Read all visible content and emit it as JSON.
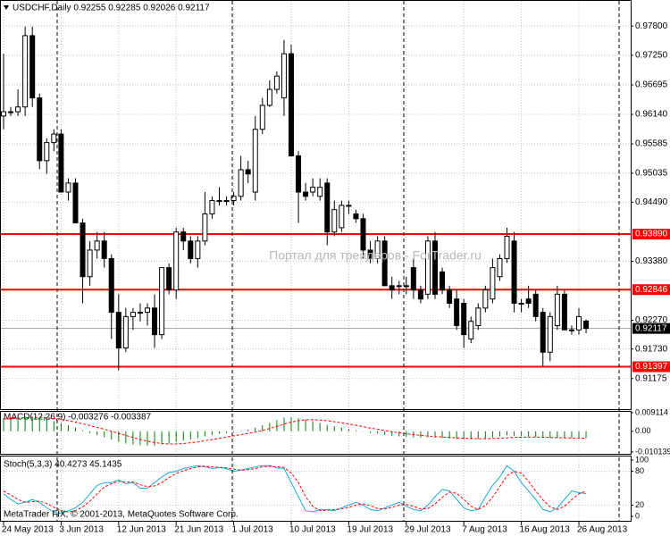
{
  "chart_data": [
    {
      "type": "candlestick",
      "title": "USDCHF,Daily  0.92255 0.92285 0.92026 0.92117",
      "annotations": [
        "Портал для трейдеров - ForTrader.ru",
        "MetaTrader FIX, © 2001-2013, MetaQuotes Software Corp."
      ],
      "categories": [
        "24 May 2013",
        null,
        null,
        null,
        null,
        null,
        null,
        null,
        "3 Jun 2013",
        null,
        null,
        null,
        null,
        null,
        null,
        null,
        "12 Jun 2013",
        null,
        null,
        null,
        null,
        null,
        null,
        null,
        "21 Jun 2013",
        null,
        null,
        null,
        null,
        null,
        null,
        null,
        "1 Jul 2013",
        null,
        null,
        null,
        null,
        null,
        null,
        null,
        "10 Jul 2013",
        null,
        null,
        null,
        null,
        null,
        null,
        null,
        "19 Jul 2013",
        null,
        null,
        null,
        null,
        null,
        null,
        null,
        "29 Jul 2013",
        null,
        null,
        null,
        null,
        null,
        null,
        null,
        "7 Aug 2013",
        null,
        null,
        null,
        null,
        null,
        null,
        null,
        "16 Aug 2013",
        null,
        null,
        null,
        null,
        null,
        null,
        null,
        "26 Aug 2013",
        null
      ],
      "open": [
        0.9611,
        0.9619,
        0.9619,
        0.9628,
        0.9762,
        0.9645,
        0.9527,
        0.9561,
        0.9577,
        0.9468,
        0.9485,
        0.941,
        0.9309,
        0.9359,
        0.9376,
        0.9343,
        0.9242,
        0.9175,
        0.9234,
        0.9242,
        0.9242,
        0.925,
        0.92,
        0.9326,
        0.9284,
        0.9393,
        0.9376,
        0.9343,
        0.9376,
        0.9427,
        0.9452,
        0.9452,
        0.9452,
        0.946,
        0.951,
        0.9468,
        0.9586,
        0.9631,
        0.9661,
        0.9645,
        0.9728,
        0.9536,
        0.9468,
        0.9468,
        0.946,
        0.9485,
        0.9393,
        0.9401,
        0.9443,
        0.9427,
        0.9418,
        0.9359,
        0.9343,
        0.9376,
        0.9292,
        0.9292,
        0.9292,
        0.9326,
        0.9284,
        0.9276,
        0.9376,
        0.9318,
        0.9284,
        0.9267,
        0.9259,
        0.9192,
        0.9217,
        0.925,
        0.9267,
        0.9309,
        0.9343,
        0.9376,
        0.9259,
        0.9267,
        0.9276,
        0.9242,
        0.9167,
        0.9217,
        0.9276,
        0.9209,
        0.9209,
        0.92255
      ],
      "high": [
        0.9728,
        0.9628,
        0.9661,
        0.9779,
        0.9779,
        0.9653,
        0.9569,
        0.9586,
        0.9586,
        0.9494,
        0.9494,
        0.9418,
        0.9376,
        0.9393,
        0.9393,
        0.9351,
        0.9276,
        0.925,
        0.925,
        0.9259,
        0.9259,
        0.9276,
        0.9326,
        0.9334,
        0.9401,
        0.9401,
        0.9385,
        0.9385,
        0.9468,
        0.946,
        0.9477,
        0.946,
        0.9468,
        0.9536,
        0.9527,
        0.9611,
        0.9645,
        0.9678,
        0.9695,
        0.9754,
        0.9745,
        0.9545,
        0.9485,
        0.9494,
        0.9494,
        0.9494,
        0.9452,
        0.9452,
        0.9452,
        0.9435,
        0.9427,
        0.9376,
        0.9385,
        0.9385,
        0.9309,
        0.9301,
        0.9309,
        0.9343,
        0.9292,
        0.9385,
        0.9393,
        0.9326,
        0.9292,
        0.9284,
        0.9267,
        0.9234,
        0.9259,
        0.9292,
        0.9343,
        0.9351,
        0.9401,
        0.9393,
        0.9267,
        0.9292,
        0.9284,
        0.925,
        0.9242,
        0.9292,
        0.9284,
        0.9217,
        0.925,
        0.92285
      ],
      "low": [
        0.9586,
        0.9611,
        0.9611,
        0.9611,
        0.9628,
        0.9511,
        0.9502,
        0.9545,
        0.9468,
        0.9452,
        0.941,
        0.9259,
        0.9292,
        0.9343,
        0.9326,
        0.9192,
        0.9133,
        0.9167,
        0.9209,
        0.9225,
        0.9217,
        0.9175,
        0.9192,
        0.9276,
        0.9267,
        0.9359,
        0.9334,
        0.9326,
        0.9368,
        0.9418,
        0.9443,
        0.9443,
        0.9443,
        0.9452,
        0.9485,
        0.9452,
        0.9577,
        0.9628,
        0.9653,
        0.9611,
        0.9536,
        0.941,
        0.9452,
        0.946,
        0.9452,
        0.9368,
        0.9385,
        0.9393,
        0.9427,
        0.941,
        0.9343,
        0.9334,
        0.9334,
        0.9292,
        0.9267,
        0.9276,
        0.9276,
        0.9267,
        0.9259,
        0.9267,
        0.9267,
        0.9276,
        0.925,
        0.9209,
        0.9175,
        0.9184,
        0.9209,
        0.9242,
        0.9259,
        0.9301,
        0.9335,
        0.9242,
        0.9242,
        0.925,
        0.9225,
        0.9141,
        0.915,
        0.9209,
        0.9209,
        0.92,
        0.92,
        0.92026
      ],
      "close": [
        0.9619,
        0.9619,
        0.9628,
        0.9762,
        0.9645,
        0.9527,
        0.9561,
        0.9577,
        0.9468,
        0.9485,
        0.941,
        0.9309,
        0.9359,
        0.9376,
        0.9343,
        0.9242,
        0.9175,
        0.9234,
        0.9242,
        0.9242,
        0.925,
        0.92,
        0.9326,
        0.9284,
        0.9393,
        0.9376,
        0.9343,
        0.9376,
        0.9427,
        0.9452,
        0.9452,
        0.9452,
        0.946,
        0.951,
        0.9502,
        0.9586,
        0.9631,
        0.9661,
        0.9686,
        0.9728,
        0.9536,
        0.9468,
        0.946,
        0.9477,
        0.9477,
        0.9393,
        0.9435,
        0.9443,
        0.9443,
        0.9418,
        0.9359,
        0.9343,
        0.9376,
        0.9292,
        0.9284,
        0.9292,
        0.9292,
        0.9284,
        0.9267,
        0.9376,
        0.9276,
        0.9284,
        0.9259,
        0.9217,
        0.92,
        0.9225,
        0.925,
        0.9284,
        0.9326,
        0.9343,
        0.9385,
        0.9259,
        0.9259,
        0.9259,
        0.9234,
        0.9167,
        0.9234,
        0.9276,
        0.9209,
        0.9209,
        0.9234,
        0.92117
      ],
      "up_color": "#ffffff",
      "down_color": "#000000",
      "ylim": [
        0.906,
        0.9829
      ],
      "yticks": [
        {
          "value": 0.978,
          "label": "0.97800"
        },
        {
          "value": 0.9725,
          "label": "0.97250"
        },
        {
          "value": 0.96695,
          "label": "0.96695"
        },
        {
          "value": 0.9614,
          "label": "0.96140"
        },
        {
          "value": 0.95585,
          "label": "0.95585"
        },
        {
          "value": 0.95035,
          "label": "0.95035"
        },
        {
          "value": 0.9449,
          "label": "0.94490"
        },
        {
          "value": 0.9338,
          "label": "0.93380"
        },
        {
          "value": 0.9227,
          "label": "0.92270"
        },
        {
          "value": 0.9173,
          "label": "0.91730"
        },
        {
          "value": 0.91175,
          "label": "0.91175"
        }
      ],
      "hlines": [
        {
          "value": 0.9389,
          "label": "0.93890"
        },
        {
          "value": 0.92846,
          "label": "0.92846"
        },
        {
          "value": 0.91397,
          "label": "0.91397"
        }
      ],
      "hline_color": "#ff0000",
      "last_price": {
        "value": 0.92117,
        "label": "0.92117"
      },
      "grid": true
    },
    {
      "type": "bar",
      "title": "MACD(12,26,9) -0.003276 -0.003387",
      "series": [
        {
          "style": "histogram",
          "color": "#008000",
          "values": [
            0.0065,
            0.0068,
            0.007,
            0.0072,
            0.007,
            0.0065,
            0.0058,
            0.005,
            0.004,
            0.003,
            0.0018,
            0.0005,
            -0.0008,
            -0.0018,
            -0.0028,
            -0.004,
            -0.0052,
            -0.006,
            -0.0065,
            -0.0068,
            -0.007,
            -0.007,
            -0.0065,
            -0.006,
            -0.0052,
            -0.0045,
            -0.004,
            -0.0034,
            -0.0025,
            -0.0018,
            -0.0012,
            -0.0008,
            -0.0004,
            0.0002,
            0.0008,
            0.0018,
            0.003,
            0.0042,
            0.0055,
            0.0068,
            0.007,
            0.0065,
            0.0058,
            0.005,
            0.0042,
            0.0032,
            0.0025,
            0.0018,
            0.0012,
            0.0005,
            -0.0002,
            -0.0008,
            -0.0012,
            -0.0018,
            -0.0022,
            -0.0025,
            -0.0028,
            -0.003,
            -0.0032,
            -0.003,
            -0.0032,
            -0.0033,
            -0.0035,
            -0.0038,
            -0.004,
            -0.004,
            -0.0038,
            -0.0035,
            -0.003,
            -0.0025,
            -0.002,
            -0.0022,
            -0.0024,
            -0.0025,
            -0.0027,
            -0.0032,
            -0.0033,
            -0.0032,
            -0.0034,
            -0.0034,
            -0.0033,
            -0.003276
          ]
        },
        {
          "style": "dashed",
          "color": "#ff0000",
          "values": [
            0.006,
            0.0062,
            0.0064,
            0.0066,
            0.0068,
            0.0068,
            0.0066,
            0.0063,
            0.0058,
            0.0052,
            0.0045,
            0.0037,
            0.0028,
            0.0019,
            0.001,
            0.0,
            -0.001,
            -0.002,
            -0.003,
            -0.004,
            -0.0048,
            -0.0055,
            -0.006,
            -0.0062,
            -0.0062,
            -0.006,
            -0.0056,
            -0.0052,
            -0.0046,
            -0.004,
            -0.0034,
            -0.0028,
            -0.0022,
            -0.0016,
            -0.001,
            -0.0004,
            0.0004,
            0.0014,
            0.0024,
            0.0035,
            0.0045,
            0.0052,
            0.0056,
            0.0057,
            0.0055,
            0.0052,
            0.0047,
            0.0042,
            0.0036,
            0.003,
            0.0023,
            0.0016,
            0.001,
            0.0004,
            -0.0002,
            -0.0007,
            -0.0012,
            -0.0016,
            -0.002,
            -0.0023,
            -0.0026,
            -0.0028,
            -0.003,
            -0.0032,
            -0.0034,
            -0.0035,
            -0.0036,
            -0.0036,
            -0.0035,
            -0.0034,
            -0.0032,
            -0.003,
            -0.0029,
            -0.0028,
            -0.0028,
            -0.0029,
            -0.003,
            -0.0031,
            -0.0032,
            -0.0033,
            -0.0033,
            -0.003387
          ]
        }
      ],
      "ylim": [
        -0.010139,
        0.009114
      ],
      "yticks": [
        {
          "value": 0.009114,
          "label": "0.009114"
        },
        {
          "value": 0,
          "label": "0.00"
        },
        {
          "value": -0.010139,
          "label": "-0.010139"
        }
      ],
      "grid": false
    },
    {
      "type": "line",
      "title": "Stoch(5,3,3) 40.4273 45.1435",
      "series": [
        {
          "style": "solid",
          "color": "#20a8d8",
          "values": [
            40,
            30,
            22,
            25,
            30,
            25,
            15,
            8,
            5,
            10,
            15,
            25,
            40,
            55,
            60,
            60,
            65,
            58,
            60,
            50,
            50,
            60,
            70,
            78,
            80,
            85,
            88,
            90,
            88,
            85,
            87,
            85,
            80,
            82,
            85,
            88,
            90,
            90,
            86,
            85,
            60,
            35,
            10,
            8,
            12,
            12,
            10,
            15,
            20,
            25,
            20,
            12,
            10,
            15,
            20,
            25,
            18,
            12,
            10,
            20,
            35,
            48,
            45,
            30,
            15,
            10,
            12,
            35,
            55,
            70,
            90,
            80,
            60,
            45,
            30,
            12,
            8,
            15,
            30,
            45,
            42,
            40.4273
          ]
        },
        {
          "style": "dashed",
          "color": "#ff0000",
          "values": [
            45,
            38,
            30,
            25,
            26,
            27,
            23,
            16,
            10,
            8,
            10,
            17,
            27,
            40,
            52,
            58,
            62,
            61,
            61,
            56,
            53,
            54,
            60,
            69,
            76,
            81,
            85,
            88,
            89,
            88,
            87,
            86,
            84,
            82,
            83,
            85,
            88,
            89,
            88,
            87,
            77,
            60,
            35,
            18,
            10,
            11,
            12,
            13,
            16,
            20,
            22,
            19,
            14,
            13,
            16,
            20,
            21,
            18,
            13,
            14,
            22,
            34,
            43,
            41,
            30,
            18,
            12,
            19,
            34,
            53,
            72,
            80,
            77,
            62,
            45,
            29,
            17,
            12,
            18,
            30,
            40,
            45.1435
          ]
        }
      ],
      "ylim": [
        0,
        100
      ],
      "yticks": [
        0,
        20,
        80,
        100
      ],
      "grid": true
    }
  ]
}
